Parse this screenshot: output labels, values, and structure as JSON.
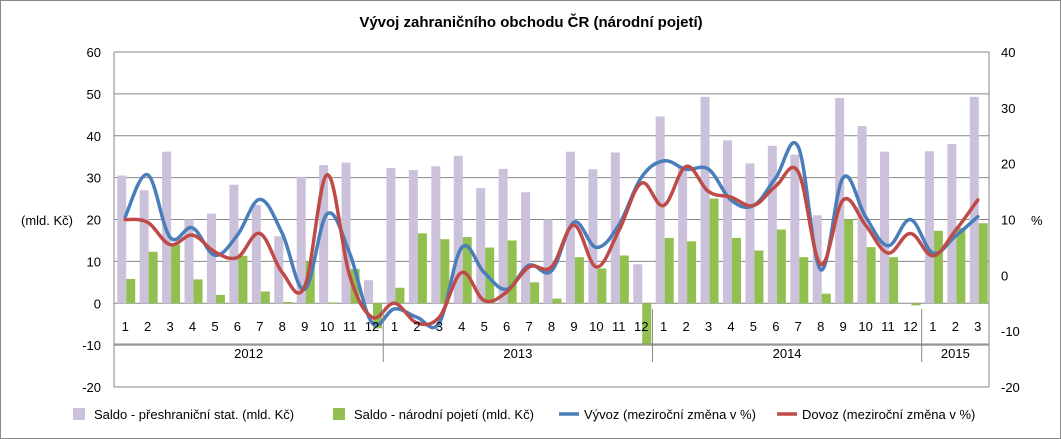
{
  "chart_data": {
    "type": "bar",
    "title": "Vývoj zahraničního obchodu ČR (národní pojetí)",
    "ylabel": "(mld. Kč)",
    "y2label": "%",
    "ylim": [
      -20,
      60
    ],
    "y2lim": [
      -20,
      40
    ],
    "yticks": [
      "-20",
      "-10",
      "0",
      "10",
      "20",
      "30",
      "40",
      "50",
      "60"
    ],
    "y2ticks": [
      "-20",
      "-10",
      "0",
      "10",
      "20",
      "30",
      "40"
    ],
    "grid": true,
    "legend_position": "bottom",
    "categories": [
      "1",
      "2",
      "3",
      "4",
      "5",
      "6",
      "7",
      "8",
      "9",
      "10",
      "11",
      "12",
      "1",
      "2",
      "3",
      "4",
      "5",
      "6",
      "7",
      "8",
      "9",
      "10",
      "11",
      "12",
      "1",
      "2",
      "3",
      "4",
      "5",
      "6",
      "7",
      "8",
      "9",
      "10",
      "11",
      "12",
      "1",
      "2",
      "3"
    ],
    "years": [
      {
        "label": "2012",
        "count": 12
      },
      {
        "label": "2013",
        "count": 12
      },
      {
        "label": "2014",
        "count": 12
      },
      {
        "label": "2015",
        "count": 3
      }
    ],
    "series": [
      {
        "name": "Saldo - přeshraniční stat. (mld. Kč)",
        "kind": "bar",
        "axis": "left",
        "color": "#ccc1da",
        "values": [
          30.5,
          27.0,
          36.2,
          20.0,
          21.4,
          28.3,
          23.5,
          16.0,
          30.2,
          33.0,
          33.6,
          5.5,
          32.3,
          31.8,
          32.7,
          35.2,
          27.5,
          32.1,
          26.5,
          20.0,
          36.2,
          32.0,
          36.0,
          9.3,
          44.6,
          32.5,
          49.3,
          38.9,
          33.4,
          37.6,
          35.5,
          21.0,
          49.0,
          42.3,
          36.2,
          0,
          36.3,
          38.0,
          49.3
        ]
      },
      {
        "name": "Saldo - národní pojetí (mld. Kč)",
        "kind": "bar",
        "axis": "left",
        "color": "#92c050",
        "values": [
          5.8,
          12.3,
          14.0,
          5.7,
          2.0,
          11.3,
          2.8,
          0.3,
          10.0,
          0.2,
          8.2,
          -6.0,
          3.7,
          16.7,
          15.3,
          15.8,
          13.3,
          15.0,
          5.0,
          1.1,
          11.0,
          8.3,
          11.4,
          -10.0,
          15.6,
          14.8,
          25.0,
          15.6,
          12.6,
          17.6,
          11.0,
          2.3,
          20.0,
          13.4,
          11.0,
          -0.5,
          17.3,
          18.0,
          19.1
        ]
      },
      {
        "name": "Vývoz (meziroční změna v %)",
        "kind": "line",
        "axis": "right",
        "color": "#4a7ebb",
        "values": [
          10.5,
          18.0,
          6.8,
          8.5,
          3.6,
          7.2,
          13.6,
          7.5,
          -2.5,
          11.0,
          4.0,
          -8.5,
          -6.0,
          -7.5,
          -8.5,
          5.0,
          0.5,
          -2.5,
          1.8,
          0.8,
          9.5,
          5.0,
          9.0,
          17.5,
          20.5,
          19.0,
          19.0,
          13.5,
          12.5,
          17.5,
          23.0,
          1.0,
          17.5,
          10.5,
          5.3,
          10.0,
          4.0,
          7.0,
          10.5
        ]
      },
      {
        "name": "Dovoz (meziroční změna v %)",
        "kind": "line",
        "axis": "right",
        "color": "#be4b48",
        "values": [
          10.0,
          9.5,
          5.5,
          7.2,
          4.2,
          3.2,
          7.5,
          0.5,
          -2.0,
          18.0,
          0.0,
          -7.5,
          -5.0,
          -8.5,
          -7.5,
          0.5,
          -4.5,
          -3.0,
          1.5,
          1.5,
          9.0,
          1.5,
          8.0,
          16.5,
          12.5,
          19.5,
          15.0,
          14.0,
          12.5,
          16.0,
          18.5,
          2.0,
          13.5,
          9.0,
          4.0,
          7.5,
          3.5,
          8.0,
          13.5
        ]
      }
    ]
  }
}
